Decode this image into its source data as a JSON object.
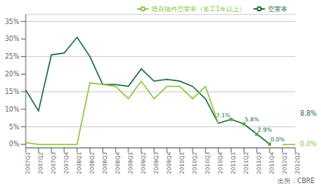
{
  "chart_data": {
    "type": "line",
    "categories": [
      "2007Q1",
      "2007Q2",
      "2007Q3",
      "2007Q4",
      "2008Q1",
      "2008Q2",
      "2008Q3",
      "2008Q4",
      "2009Q1",
      "2009Q2",
      "2009Q3",
      "2009Q4",
      "2010Q1",
      "2010Q2",
      "2010Q3",
      "2010Q4",
      "2011Q1",
      "2011Q2",
      "2011Q3",
      "2011Q4",
      "2012Q1",
      "2012Q2"
    ],
    "series": [
      {
        "name": "空室率",
        "color": "#1a6b3c",
        "values": [
          15.5,
          9.5,
          25.5,
          26.0,
          30.5,
          25.0,
          17.0,
          17.0,
          16.5,
          21.5,
          18.0,
          18.5,
          18.0,
          16.5,
          13.0,
          6.0,
          7.1,
          5.8,
          2.9,
          0.05,
          null,
          8.8
        ]
      },
      {
        "name": "既存物件空室率（签工1年以上）",
        "color": "#8dc63f",
        "values": [
          0.5,
          0.0,
          0.0,
          0.0,
          0.0,
          17.5,
          17.0,
          16.5,
          13.0,
          18.0,
          13.0,
          16.5,
          16.5,
          13.0,
          16.5,
          6.0,
          null,
          null,
          null,
          null,
          0.0,
          0.0
        ]
      }
    ],
    "ylim": [
      -1,
      37
    ],
    "yticks": [
      {
        "value": 0,
        "label": "0%"
      },
      {
        "value": 5,
        "label": "5%"
      },
      {
        "value": 10,
        "label": "10%"
      },
      {
        "value": 15,
        "label": "15%"
      },
      {
        "value": 20,
        "label": "20%"
      },
      {
        "value": 25,
        "label": "25%"
      },
      {
        "value": 30,
        "label": "30%"
      },
      {
        "value": 35,
        "label": "35%"
      }
    ],
    "grid": true,
    "grid_color": "#cccccc",
    "legend": "upper right",
    "background": "#ffffff",
    "markers": {
      "series": "空室率",
      "x": [
        "2011Q1",
        "2011Q2",
        "2011Q3",
        "2011Q4"
      ],
      "marker": "square",
      "color": "#5aab46"
    },
    "annotations": [
      {
        "x": "2011Q1",
        "y": 7.1,
        "text": "7.1%",
        "color": "#1a6b3c"
      },
      {
        "x": "2011Q2",
        "y": 5.8,
        "text": "5.8%",
        "color": "#1a6b3c"
      },
      {
        "x": "2011Q3",
        "y": 2.9,
        "text": "2.9%",
        "color": "#1a6b3c"
      },
      {
        "x": "2011Q4",
        "y": 0.05,
        "text": "0.0%",
        "color": "#1a6b3c"
      },
      {
        "x": "2012Q2",
        "y": 8.8,
        "text": "8.8%",
        "color": "#1a6b3c"
      },
      {
        "x": "2012Q2",
        "y": 0.0,
        "text": "0.0%",
        "color": "#8dc63f"
      }
    ],
    "source": "出所：CBRE"
  }
}
